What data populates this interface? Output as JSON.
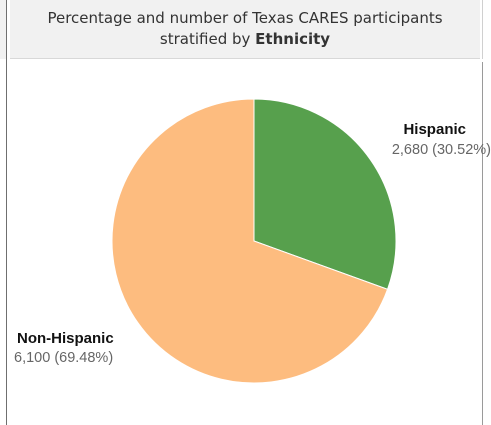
{
  "header": {
    "title_line1": "Percentage and number of Texas CARES participants",
    "title_line2_prefix": "stratified by ",
    "title_line2_bold": "Ethnicity"
  },
  "chart_data": {
    "type": "pie",
    "title": "Percentage and number of Texas CARES participants stratified by Ethnicity",
    "slices": [
      {
        "label": "Hispanic",
        "value": 2680,
        "percent": 30.52,
        "display": "2,680 (30.52%)",
        "color": "#57a04d"
      },
      {
        "label": "Non-Hispanic",
        "value": 6100,
        "percent": 69.48,
        "display": "6,100 (69.48%)",
        "color": "#fdbc7f"
      }
    ]
  }
}
